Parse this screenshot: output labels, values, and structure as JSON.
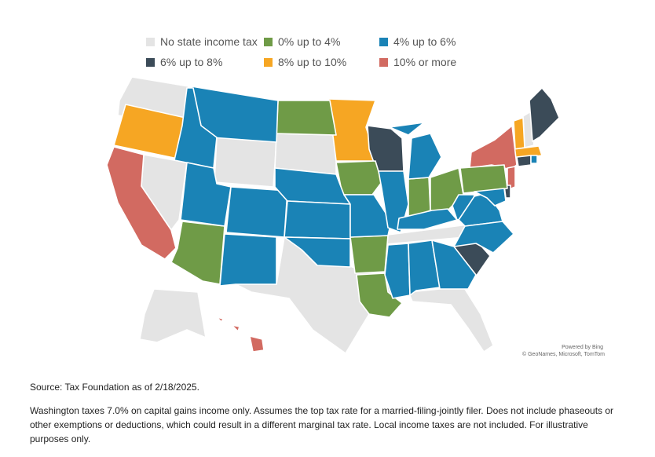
{
  "legend": {
    "items": [
      {
        "label": "No state income tax",
        "color": "#e4e4e4"
      },
      {
        "label": "0% up to 4%",
        "color": "#6f9b47"
      },
      {
        "label": "4% up to 6%",
        "color": "#1a83b6"
      },
      {
        "label": "6% up to 8%",
        "color": "#3b4b58"
      },
      {
        "label": "8% up to 10%",
        "color": "#f6a623"
      },
      {
        "label": "10% or more",
        "color": "#d26a61"
      }
    ]
  },
  "map": {
    "attribution_line1": "Powered by Bing",
    "attribution_line2": "© GeoNames, Microsoft, TomTom"
  },
  "footer": {
    "source": "Source: Tax Foundation as of 2/18/2025.",
    "note": "Washington taxes 7.0% on capital gains income only. Assumes the top tax rate for a married-filing-jointly filer. Does not include phaseouts or other exemptions or deductions, which could result in a different marginal tax rate. Local income taxes are not included. For illustrative purposes only."
  }
}
